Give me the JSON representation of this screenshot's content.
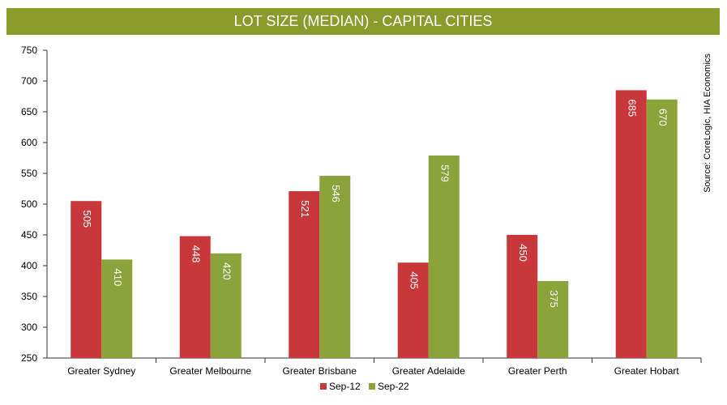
{
  "chart_data": {
    "type": "bar",
    "title": "LOT SIZE (MEDIAN) - CAPITAL CITIES",
    "categories": [
      "Greater Sydney",
      "Greater Melbourne",
      "Greater Brisbane",
      "Greater Adelaide",
      "Greater Perth",
      "Greater Hobart"
    ],
    "series": [
      {
        "name": "Sep-12",
        "values": [
          505,
          448,
          521,
          405,
          450,
          685
        ],
        "color": "#c8373a"
      },
      {
        "name": "Sep-22",
        "values": [
          410,
          420,
          546,
          579,
          375,
          670
        ],
        "color": "#8aa33a"
      }
    ],
    "ylim": [
      250,
      750
    ],
    "yticks": [
      250,
      300,
      350,
      400,
      450,
      500,
      550,
      600,
      650,
      700,
      750
    ],
    "xlabel": "",
    "ylabel": "",
    "grid": false,
    "legend": "bottom",
    "source": "Source: CoreLogic, HIA Economics",
    "title_bar_color": "#8a9a2b"
  }
}
